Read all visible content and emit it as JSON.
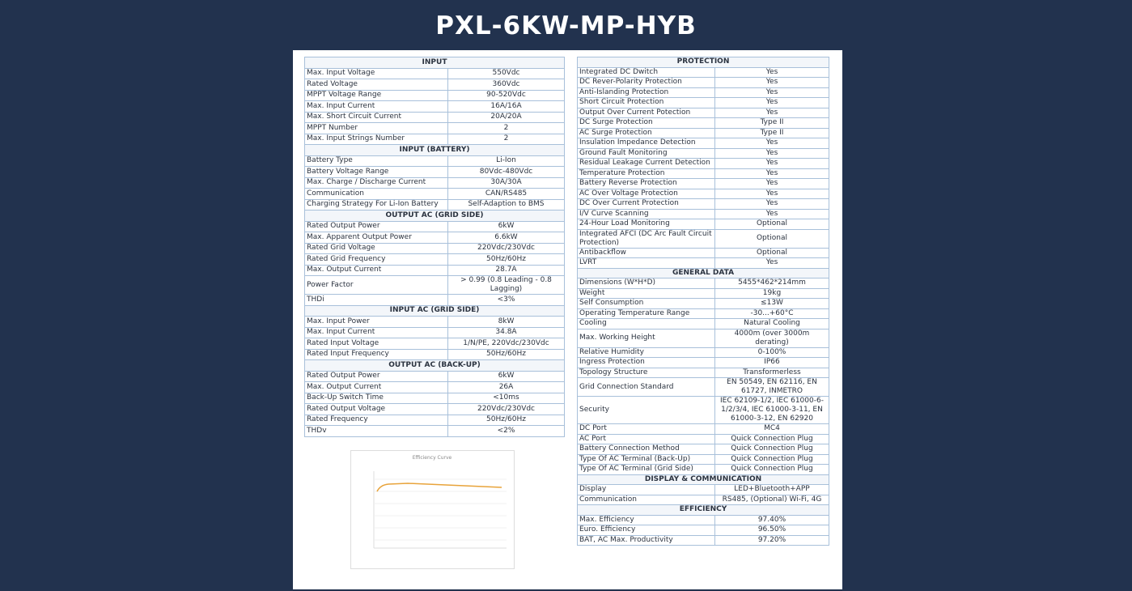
{
  "title": "PXL-6KW-MP-HYB",
  "left": [
    {
      "title": "INPUT",
      "rows": [
        [
          "Max. Input Voltage",
          "550Vdc"
        ],
        [
          "Rated Voltage",
          "360Vdc"
        ],
        [
          "MPPT Voltage Range",
          "90-520Vdc"
        ],
        [
          "Max. Input Current",
          "16A/16A"
        ],
        [
          "Max. Short Circuit Current",
          "20A/20A"
        ],
        [
          "MPPT Number",
          "2"
        ],
        [
          "Max. Input Strings Number",
          "2"
        ]
      ]
    },
    {
      "title": "INPUT (BATTERY)",
      "rows": [
        [
          "Battery Type",
          "Li-Ion"
        ],
        [
          "Battery Voltage Range",
          "80Vdc-480Vdc"
        ],
        [
          "Max. Charge / Discharge Current",
          "30A/30A"
        ],
        [
          "Communication",
          "CAN/RS485"
        ],
        [
          "Charging Strategy For Li-Ion Battery",
          "Self-Adaption to BMS"
        ]
      ]
    },
    {
      "title": "OUTPUT AC (GRID SIDE)",
      "rows": [
        [
          "Rated Output Power",
          "6kW"
        ],
        [
          "Max. Apparent Output Power",
          "6.6kW"
        ],
        [
          "Rated Grid Voltage",
          "220Vdc/230Vdc"
        ],
        [
          "Rated Grid Frequency",
          "50Hz/60Hz"
        ],
        [
          "Max. Output Current",
          "28.7A"
        ],
        [
          "Power Factor",
          "> 0.99 (0.8 Leading - 0.8 Lagging)"
        ],
        [
          "THDi",
          "<3%"
        ]
      ]
    },
    {
      "title": "INPUT AC (GRID SIDE)",
      "rows": [
        [
          "Max. Input Power",
          "8kW"
        ],
        [
          "Max. Input Current",
          "34.8A"
        ],
        [
          "Rated Input Voltage",
          "1/N/PE, 220Vdc/230Vdc"
        ],
        [
          "Rated Input Frequency",
          "50Hz/60Hz"
        ]
      ]
    },
    {
      "title": "OUTPUT AC (BACK-UP)",
      "rows": [
        [
          "Rated Output Power",
          "6kW"
        ],
        [
          "Max. Output Current",
          "26A"
        ],
        [
          "Back-Up Switch Time",
          "<10ms"
        ],
        [
          "Rated Output Voltage",
          "220Vdc/230Vdc"
        ],
        [
          "Rated Frequency",
          "50Hz/60Hz"
        ],
        [
          "THDv",
          "<2%"
        ]
      ]
    }
  ],
  "right": [
    {
      "title": "PROTECTION",
      "rows": [
        [
          "Integrated DC Dwitch",
          "Yes"
        ],
        [
          "DC Rever-Polarity Protection",
          "Yes"
        ],
        [
          "Anti-Islanding Protection",
          "Yes"
        ],
        [
          "Short Circuit Protection",
          "Yes"
        ],
        [
          "Output Over Current Potection",
          "Yes"
        ],
        [
          "DC Surge Protection",
          "Type II"
        ],
        [
          "AC Surge Protection",
          "Type II"
        ],
        [
          "Insulation Impedance Detection",
          "Yes"
        ],
        [
          "Ground Fault Monitoring",
          "Yes"
        ],
        [
          "Residual Leakage Current Detection",
          "Yes"
        ],
        [
          "Temperature Protection",
          "Yes"
        ],
        [
          "Battery Reverse Protection",
          "Yes"
        ],
        [
          "AC Over Voltage Protection",
          "Yes"
        ],
        [
          "DC Over Current Protection",
          "Yes"
        ],
        [
          "I/V Curve Scanning",
          "Yes"
        ],
        [
          "24-Hour Load Monitoring",
          "Optional"
        ],
        [
          "Integrated AFCI (DC Arc Fault Circuit Protection)",
          "Optional"
        ],
        [
          "Antibackflow",
          "Optional"
        ],
        [
          "LVRT",
          "Yes"
        ]
      ]
    },
    {
      "title": "GENERAL DATA",
      "rows": [
        [
          "Dimensions (W*H*D)",
          "5455*462*214mm"
        ],
        [
          "Weight",
          "19kg"
        ],
        [
          "Self Consumption",
          "≤13W"
        ],
        [
          "Operating Temperature Range",
          "-30...+60°C"
        ],
        [
          "Cooling",
          "Natural Cooling"
        ],
        [
          "Max. Working Height",
          "4000m (over 3000m derating)"
        ],
        [
          "Relative Humidity",
          "0-100%"
        ],
        [
          "Ingress Protection",
          "IP66"
        ],
        [
          "Topology Structure",
          "Transformerless"
        ],
        [
          "Grid Connection Standard",
          "EN 50549, EN 62116, EN 61727, INMETRO"
        ],
        [
          "Security",
          "IEC 62109-1/2, IEC 61000-6-1/2/3/4, IEC 61000-3-11, EN 61000-3-12, EN 62920"
        ],
        [
          "DC Port",
          "MC4"
        ],
        [
          "AC Port",
          "Quick Connection Plug"
        ],
        [
          "Battery Connection Method",
          "Quick Connection Plug"
        ],
        [
          "Type Of AC Terminal (Back-Up)",
          "Quick Connection Plug"
        ],
        [
          "Type Of AC Terminal (Grid Side)",
          "Quick Connection Plug"
        ]
      ]
    },
    {
      "title": "DISPLAY & COMMUNICATION",
      "rows": [
        [
          "Display",
          "LED+Bluetooth+APP"
        ],
        [
          "Communication",
          "RS485, (Optional) Wi-Fi, 4G"
        ]
      ]
    },
    {
      "title": "EFFICIENCY",
      "rows": [
        [
          "Max. Efficiency",
          "97.40%"
        ],
        [
          "Euro. Efficiency",
          "96.50%"
        ],
        [
          "BAT, AC Max. Productivity",
          "97.20%"
        ]
      ]
    }
  ],
  "efficiency_curve": {
    "title": "Efficiency Curve"
  }
}
